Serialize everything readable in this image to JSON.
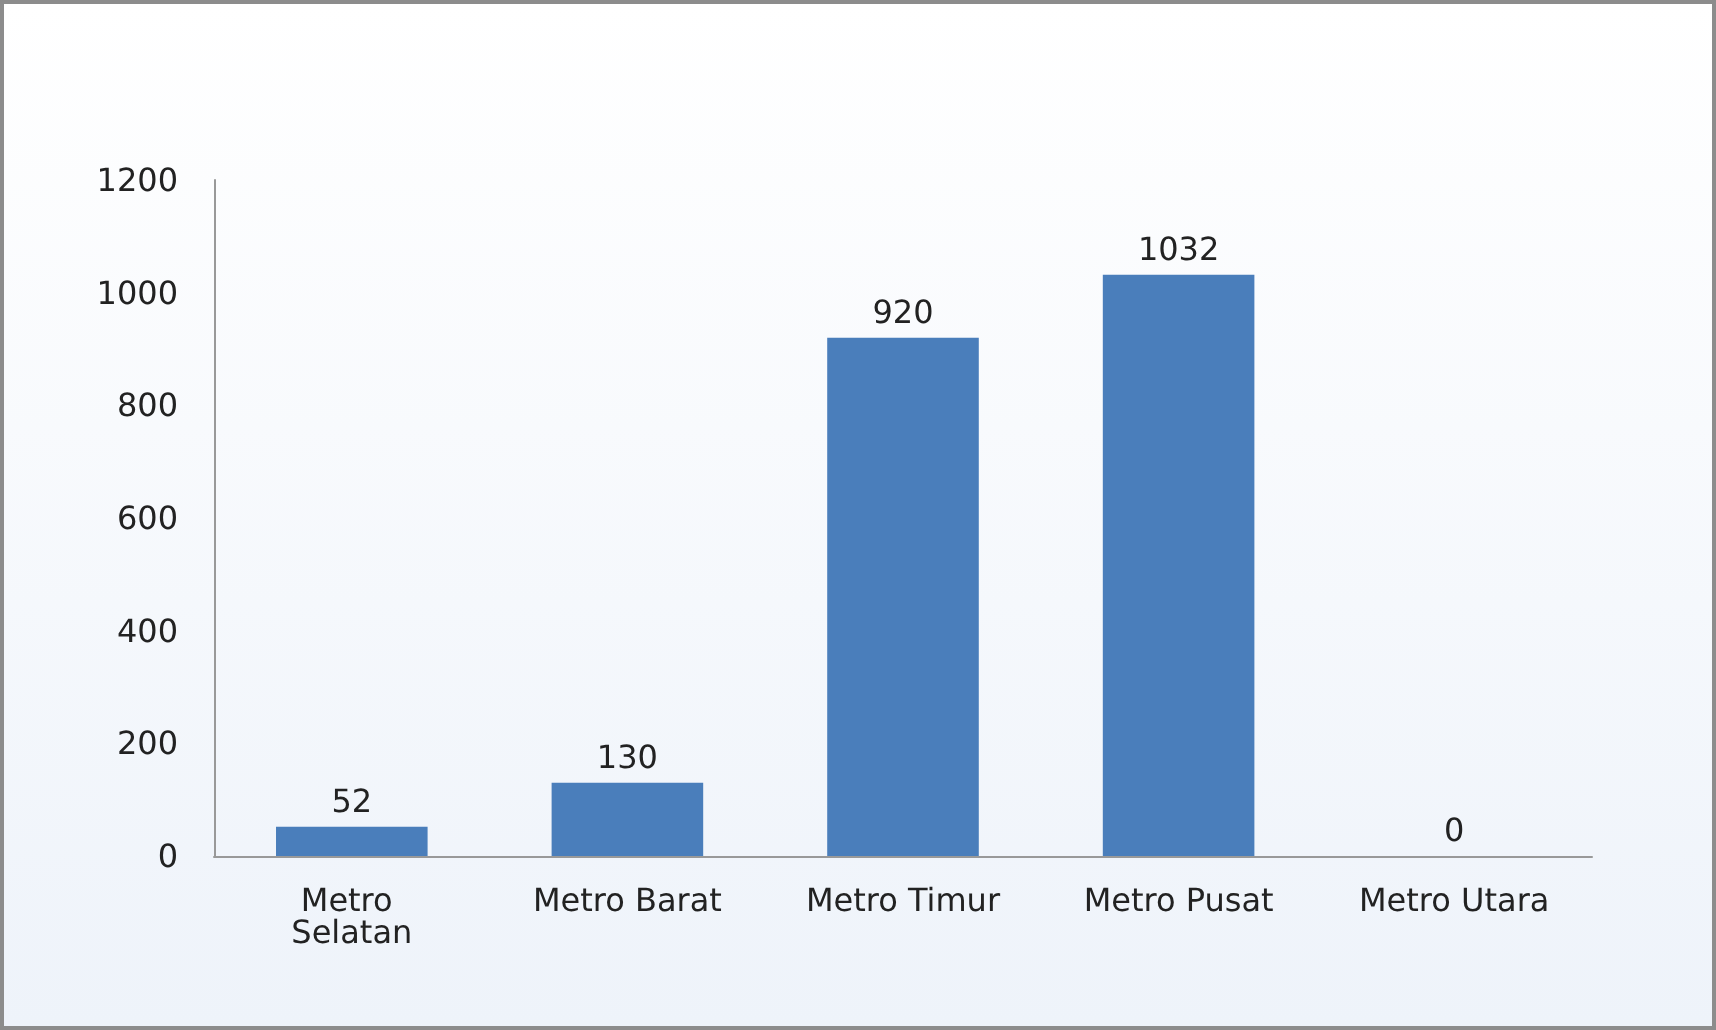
{
  "chart_data": {
    "type": "bar",
    "categories": [
      "Metro Selatan",
      "Metro Barat",
      "Metro Timur",
      "Metro Pusat",
      "Metro Utara"
    ],
    "values": [
      52,
      130,
      920,
      1032,
      0
    ],
    "color": "#4a7ebb",
    "ylim": [
      0,
      1200
    ],
    "yticks": [
      0,
      200,
      400,
      600,
      800,
      1000,
      1200
    ],
    "grid": false,
    "data_labels": true
  }
}
